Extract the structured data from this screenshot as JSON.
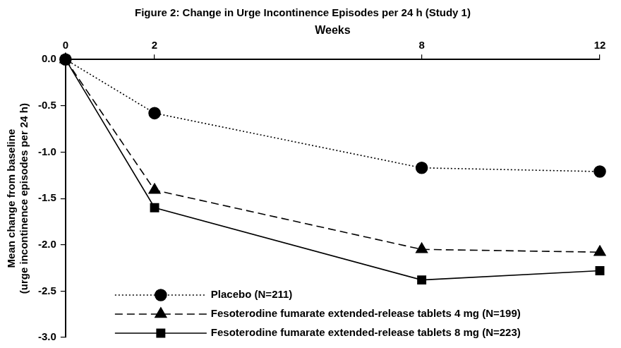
{
  "chart_data": {
    "type": "line",
    "title": "Figure 2: Change in Urge Incontinence Episodes per 24 h (Study 1)",
    "xlabel": "Weeks",
    "ylabel": [
      "Mean change from baseline",
      "(urge incontinence episodes per 24 h)"
    ],
    "x": [
      0,
      2,
      8,
      12
    ],
    "series": [
      {
        "name": "Placebo (N=211)",
        "color": "#000000",
        "marker": "circle",
        "line_style": "dotted",
        "values": [
          0,
          -0.58,
          -1.17,
          -1.21
        ]
      },
      {
        "name": "Fesoterodine fumarate extended-release tablets 4 mg (N=199)",
        "color": "#000000",
        "marker": "triangle",
        "line_style": "dashed",
        "values": [
          0,
          -1.41,
          -2.05,
          -2.08
        ]
      },
      {
        "name": "Fesoterodine fumarate extended-release tablets 8 mg (N=223)",
        "color": "#000000",
        "marker": "square",
        "line_style": "solid",
        "values": [
          0,
          -1.6,
          -2.38,
          -2.28
        ]
      }
    ],
    "xlim": [
      0,
      12
    ],
    "xticks": [
      0,
      2,
      8,
      12
    ],
    "ylim": [
      -3.0,
      0.0
    ],
    "yticks": [
      {
        "value": -3.0,
        "label": "-3.0"
      },
      {
        "value": -2.5,
        "label": "-2.5"
      },
      {
        "value": -2.0,
        "label": "-2.0"
      },
      {
        "value": -1.5,
        "label": "-1.5"
      },
      {
        "value": -1.0,
        "label": "-1.0"
      },
      {
        "value": -0.5,
        "label": "-0.5"
      },
      {
        "value": 0.0,
        "label": "0.0"
      }
    ],
    "grid": false,
    "legend": "lower left"
  }
}
